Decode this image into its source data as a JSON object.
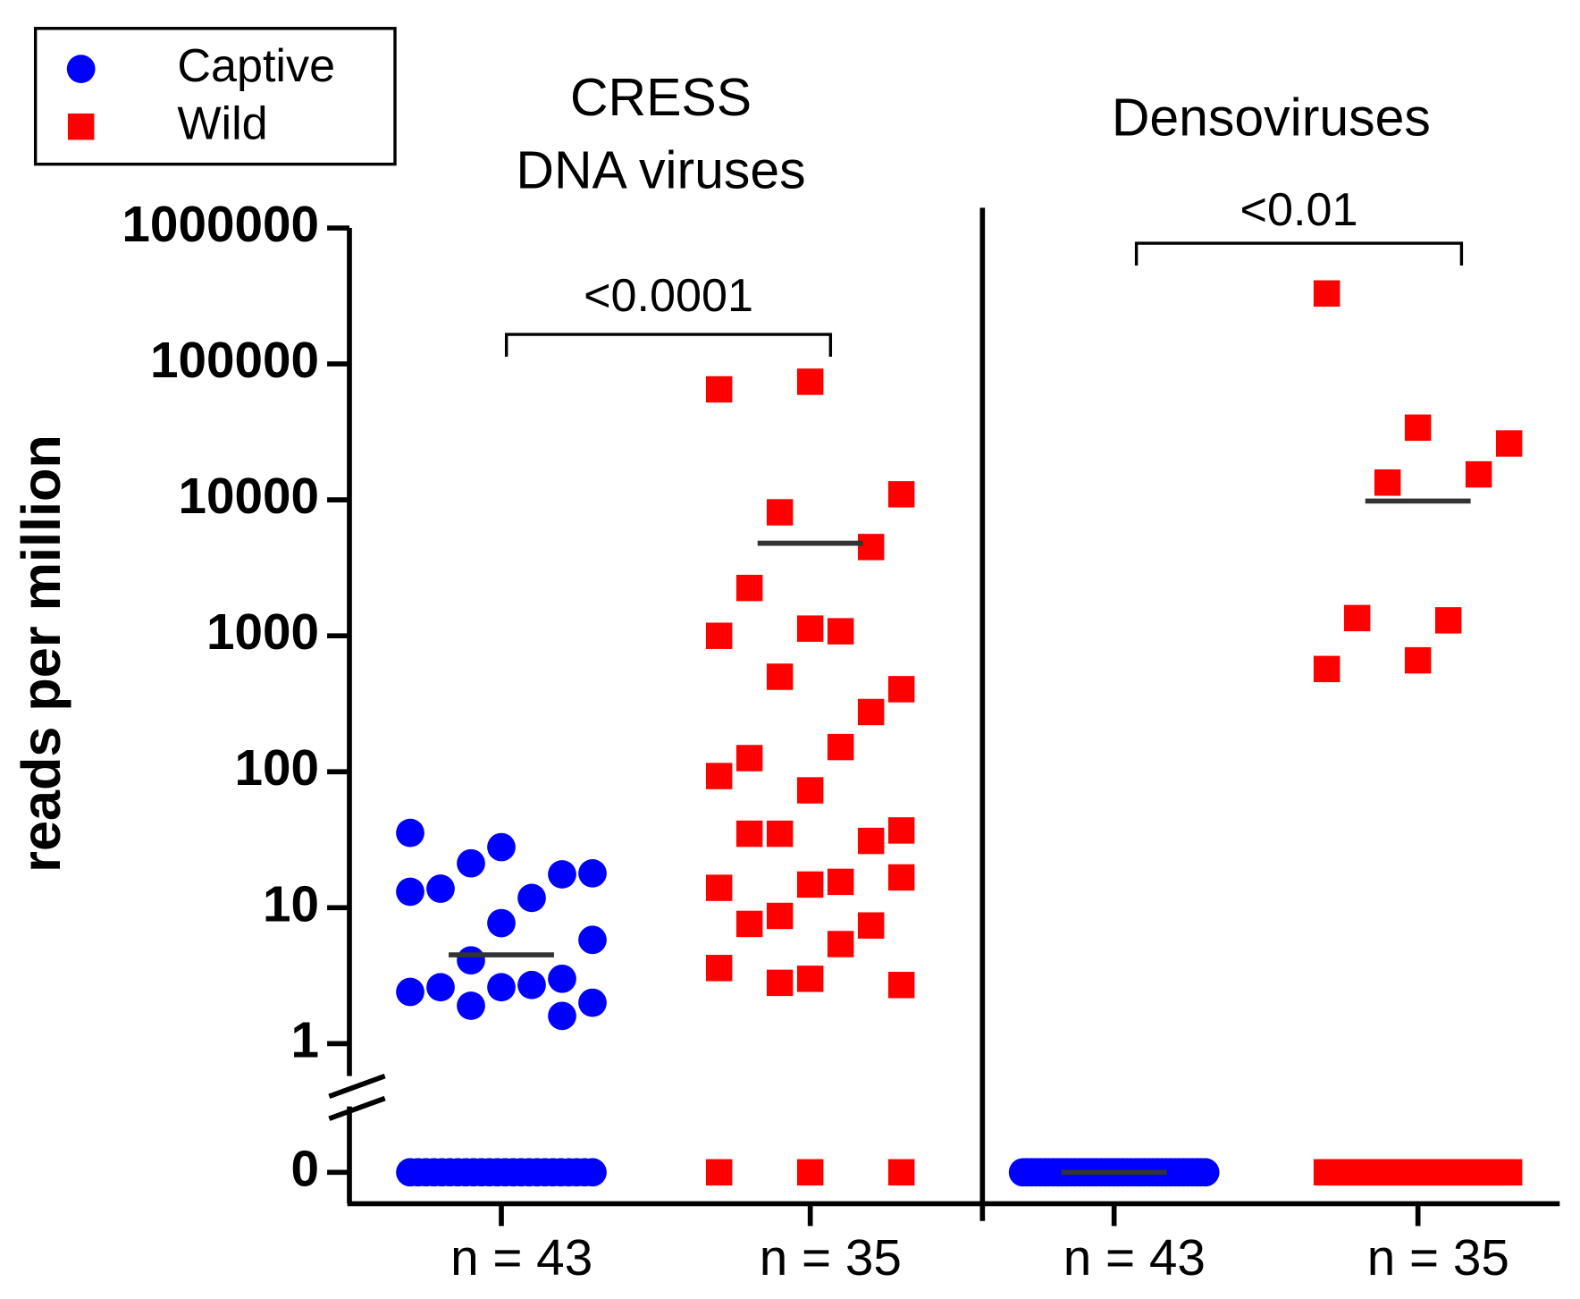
{
  "chart_data": {
    "type": "scatter",
    "y_label": "reads per million",
    "log_scale": true,
    "axis_break": true,
    "ylim": [
      1,
      1000000
    ],
    "yticks": [
      0,
      1,
      10,
      100,
      1000,
      10000,
      100000,
      1000000
    ],
    "legend_position": "upper left",
    "center_line_color": "#333333",
    "series": [
      {
        "name": "Captive",
        "color": "#0000ff",
        "marker": "circle"
      },
      {
        "name": "Wild",
        "color": "#ff0000",
        "marker": "square"
      }
    ],
    "panels": [
      {
        "title": [
          "CRESS",
          "DNA viruses"
        ],
        "annotation": "<0.0001",
        "groups": [
          {
            "label": "n = 43",
            "center": 4.5,
            "values": [
              35.5,
              27.9,
              17.9,
              21.2,
              17.6,
              13.8,
              11.8,
              13.1,
              7.7,
              5.8,
              4.1,
              3.0,
              2.6,
              2.7,
              2.4,
              2.6,
              2.0,
              1.9,
              1.6,
              0,
              0,
              0,
              0,
              0,
              0,
              0,
              0,
              0,
              0,
              0,
              0,
              0,
              0,
              0,
              0,
              0,
              0,
              0,
              0,
              0,
              0,
              0,
              0
            ]
          },
          {
            "label": "n = 35",
            "center": 4800,
            "values": [
              65000,
              74000,
              11000,
              8100,
              4500,
              2250,
              1080,
              1000,
              1130,
              405,
              500,
              275,
              126,
              152,
              93,
              73,
              37,
              35,
              31,
              35,
              15.5,
              14,
              14.8,
              16.7,
              8.7,
              7.4,
              7.6,
              5.4,
              3.6,
              3.0,
              2.7,
              2.8,
              0,
              0,
              0
            ]
          }
        ]
      },
      {
        "title": [
          "Densoviruses"
        ],
        "annotation": "<0.01",
        "groups": [
          {
            "label": "n = 43",
            "center": 0,
            "values": [
              0,
              0,
              0,
              0,
              0,
              0,
              0,
              0,
              0,
              0,
              0,
              0,
              0,
              0,
              0,
              0,
              0,
              0,
              0,
              0,
              0,
              0,
              0,
              0,
              0,
              0,
              0,
              0,
              0,
              0,
              0,
              0,
              0,
              0,
              0,
              0,
              0,
              0,
              0,
              0,
              0,
              0,
              0
            ]
          },
          {
            "label": "n = 35",
            "center": 9800,
            "values": [
              330000,
              34000,
              26000,
              13400,
              15400,
              1350,
              1300,
              570,
              660,
              0,
              0,
              0,
              0,
              0,
              0,
              0,
              0,
              0,
              0,
              0,
              0,
              0,
              0,
              0,
              0,
              0,
              0,
              0,
              0,
              0,
              0,
              0,
              0,
              0,
              0
            ]
          }
        ]
      }
    ]
  }
}
